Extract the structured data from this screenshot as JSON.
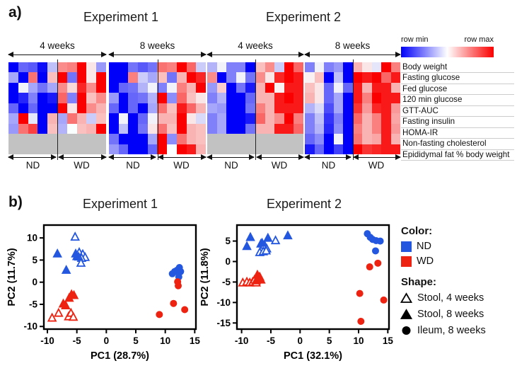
{
  "panel_a": {
    "label": "a)",
    "experiments": [
      "Experiment 1",
      "Experiment 2"
    ],
    "colorbar": {
      "min_label": "row min",
      "max_label": "row max"
    },
    "nd_label": "ND",
    "wd_label": "WD",
    "row_labels": [
      "Body weight",
      "Fasting glucose",
      "Fed glucose",
      "120 min glucose",
      "GTT-AUC",
      "Fasting insulin",
      "HOMA-IR",
      "Non-fasting cholesterol",
      "Epididymal fat % body weight"
    ]
  },
  "panel_b": {
    "label": "b)",
    "titles": [
      "Experiment 1",
      "Experiment 2"
    ],
    "legend": {
      "color_title": "Color:",
      "color_items": [
        {
          "label": "ND",
          "color_key": "nd_blue"
        },
        {
          "label": "WD",
          "color_key": "wd_red"
        }
      ],
      "shape_title": "Shape:",
      "shape_items": [
        {
          "label": "Stool, 4 weeks",
          "shape": "triangle-open"
        },
        {
          "label": "Stool, 8 weeks",
          "shape": "triangle-filled"
        },
        {
          "label": "Ileum, 8 weeks",
          "shape": "circle-filled"
        }
      ]
    }
  },
  "colors": {
    "nd_blue": "#2457E0",
    "wd_red": "#EE2211",
    "heat_min_blue": "#0000FA",
    "heat_max_red": "#FA0000",
    "missing_gray": "#C2C2C2"
  },
  "chart_data": [
    {
      "type": "heatmap",
      "experiment": "Experiment 1",
      "week_label": "4 weeks",
      "column_groups": {
        "ND": 5,
        "WD": 5
      },
      "scale": "row min (-1, blue) to row max (+1, red), null = not measured (gray)",
      "values": [
        [
          -1,
          -0.6,
          -0.65,
          -0.95,
          -0.25,
          0.45,
          0.5,
          1,
          0.1,
          -0.4
        ],
        [
          -0.35,
          -1,
          0.55,
          -1,
          0.25,
          1,
          -0.55,
          1,
          0.1,
          1
        ],
        [
          -1,
          -0.05,
          -0.35,
          -0.55,
          -0.35,
          0.45,
          0.15,
          0.85,
          0.45,
          1
        ],
        [
          -1,
          -0.85,
          -0.5,
          -1,
          -0.9,
          0.6,
          -0.5,
          1,
          0.25,
          0.45
        ],
        [
          -0.6,
          -1,
          -0.6,
          -1,
          -1,
          1,
          0.1,
          1,
          0.45,
          0.3
        ],
        [
          -0.35,
          1,
          -0.1,
          -1,
          0.3,
          -0.35,
          0.55,
          0.3,
          -0.2,
          0.25
        ],
        [
          -0.4,
          0.55,
          0.75,
          -1,
          0.25,
          -0.3,
          0,
          0.25,
          0.3,
          1
        ],
        [
          null,
          null,
          null,
          null,
          null,
          null,
          null,
          null,
          null,
          null
        ],
        [
          null,
          null,
          null,
          null,
          null,
          null,
          null,
          null,
          null,
          null
        ]
      ]
    },
    {
      "type": "heatmap",
      "experiment": "Experiment 1",
      "week_label": "8 weeks",
      "column_groups": {
        "ND": 5,
        "WD": 5
      },
      "values": [
        [
          -1,
          -1,
          -0.55,
          -0.65,
          -0.55,
          0.55,
          0.5,
          1,
          0.6,
          -0.2
        ],
        [
          -1,
          -1,
          0.5,
          -0.2,
          -0.35,
          0.25,
          -0.55,
          0.3,
          1,
          0.85
        ],
        [
          -1,
          -0.6,
          -0.55,
          -0.3,
          -0.05,
          -0.5,
          -0.05,
          0.5,
          0.3,
          1
        ],
        [
          -0.4,
          -1,
          -0.6,
          -0.55,
          -0.3,
          1,
          -0.45,
          0.6,
          0.25,
          0.1
        ],
        [
          -0.6,
          -1,
          -0.6,
          -1,
          -0.35,
          0.55,
          0.25,
          0.9,
          0.6,
          0.3
        ],
        [
          -1,
          -0.05,
          -1,
          -0.6,
          -0.05,
          0.3,
          0.3,
          1,
          0.1,
          -0.15
        ],
        [
          -1,
          -0.25,
          -1,
          -0.55,
          0.1,
          0.55,
          0.25,
          1,
          0.3,
          0.25
        ],
        [
          -0.55,
          -1,
          -1,
          -1,
          -0.35,
          1,
          -0.45,
          0.55,
          0.3,
          0.25
        ],
        [
          -0.4,
          -0.6,
          -1,
          -1,
          -0.6,
          1,
          0,
          1,
          0.9,
          0.3
        ]
      ]
    },
    {
      "type": "heatmap",
      "experiment": "Experiment 2",
      "week_label": "4 weeks",
      "column_groups": {
        "ND": 5,
        "WD": 5
      },
      "values": [
        [
          -0.3,
          -0.05,
          -0.5,
          -0.5,
          -1,
          0.25,
          0.45,
          -0.2,
          1,
          0.6
        ],
        [
          0.45,
          -1,
          -0.5,
          -0.05,
          -0.55,
          0.45,
          0.1,
          0.85,
          1,
          0.9
        ],
        [
          -0.4,
          0.2,
          -1,
          -0.55,
          -0.9,
          0.3,
          1,
          0.05,
          0.9,
          0.9
        ],
        [
          -0.5,
          -0.3,
          -1,
          -1,
          -0.6,
          0.3,
          0.3,
          0.9,
          1,
          0.9
        ],
        [
          -0.35,
          -0.4,
          -1,
          -1,
          -0.55,
          0.5,
          0.3,
          0.9,
          0.9,
          0.9
        ],
        [
          -0.5,
          -0.35,
          -1,
          -1,
          -0.9,
          0.6,
          0.3,
          0.45,
          1,
          0.5
        ],
        [
          -0.5,
          -0.35,
          -1,
          -1,
          -0.55,
          0.3,
          0.3,
          0.9,
          0.9,
          0.6
        ],
        [
          null,
          null,
          null,
          null,
          null,
          null,
          null,
          null,
          null,
          null
        ],
        [
          null,
          null,
          null,
          null,
          null,
          null,
          null,
          null,
          null,
          null
        ]
      ]
    },
    {
      "type": "heatmap",
      "experiment": "Experiment 2",
      "week_label": "8 weeks",
      "column_groups": {
        "ND": 5,
        "WD": 5
      },
      "values": [
        [
          -0.5,
          -0.05,
          -0.5,
          -0.4,
          -1,
          0.3,
          0.1,
          -0.1,
          1,
          0.5
        ],
        [
          0.05,
          0.25,
          -1,
          -0.25,
          -1,
          1,
          0.9,
          1,
          0.6,
          0.9
        ],
        [
          0.25,
          0.1,
          -0.6,
          -0.05,
          -0.6,
          0.9,
          0.3,
          0.9,
          0.9,
          0.3
        ],
        [
          0.3,
          0.1,
          -0.6,
          -0.35,
          -1,
          0.9,
          0.5,
          1,
          0.9,
          0.9
        ],
        [
          -0.3,
          -0.15,
          -0.7,
          -0.35,
          -1,
          0.8,
          0.4,
          0.85,
          0.9,
          0.4
        ],
        [
          -0.5,
          -0.25,
          -0.8,
          -0.5,
          -1,
          0.6,
          0.3,
          0.5,
          0.9,
          0.35
        ],
        [
          -0.5,
          -0.3,
          -0.85,
          -0.45,
          -1,
          0.5,
          0.3,
          0.5,
          0.9,
          0.4
        ],
        [
          -0.6,
          -0.45,
          -1,
          -0.05,
          -1,
          0.55,
          0.3,
          0.35,
          0.9,
          0.3
        ],
        [
          -0.9,
          -0.6,
          -1,
          -0.75,
          -1,
          1,
          0.8,
          0.85,
          0.9,
          0.9
        ]
      ]
    },
    {
      "type": "scatter",
      "title": "Experiment 1",
      "xlabel": "PC1 (28.7%)",
      "ylabel": "PC2 (11.7%)",
      "xticks": [
        -10,
        -5,
        0,
        5,
        10,
        15
      ],
      "yticks": [
        -10,
        -5,
        0,
        5,
        10
      ],
      "xlim": [
        -10.6,
        15.2
      ],
      "ylim": [
        -10.6,
        12.9
      ],
      "series": [
        {
          "name": "ND Stool, 4 weeks",
          "color": "ND",
          "shape": "triangle-open",
          "points": [
            [
              -5.3,
              10.2
            ],
            [
              -4.6,
              6.7
            ],
            [
              -4.0,
              6.3
            ],
            [
              -3.6,
              5.6
            ],
            [
              -4.2,
              5.4
            ],
            [
              -4.7,
              5.7
            ],
            [
              -4.3,
              4.3
            ]
          ]
        },
        {
          "name": "ND Stool, 8 weeks",
          "color": "ND",
          "shape": "triangle-filled",
          "points": [
            [
              -8.3,
              6.4
            ],
            [
              -6.8,
              2.7
            ],
            [
              -5.2,
              6.4
            ],
            [
              -5.0,
              5.8
            ]
          ]
        },
        {
          "name": "ND Ileum, 8 weeks",
          "color": "ND",
          "shape": "circle-filled",
          "points": [
            [
              11.2,
              1.9
            ],
            [
              11.6,
              2.4
            ],
            [
              12.0,
              2.7
            ],
            [
              12.4,
              3.3
            ],
            [
              12.6,
              2.4
            ],
            [
              12.3,
              1.2
            ]
          ]
        },
        {
          "name": "WD Stool, 4 weeks",
          "color": "WD",
          "shape": "triangle-open",
          "points": [
            [
              -9.2,
              -8.1
            ],
            [
              -8.1,
              -7.0
            ],
            [
              -6.4,
              -7.8
            ],
            [
              -6.0,
              -7.0
            ],
            [
              -5.6,
              -7.9
            ]
          ]
        },
        {
          "name": "WD Stool, 8 weeks",
          "color": "WD",
          "shape": "triangle-filled",
          "points": [
            [
              -7.3,
              -4.9
            ],
            [
              -6.9,
              -5.3
            ],
            [
              -6.3,
              -3.6
            ],
            [
              -5.9,
              -2.8
            ],
            [
              -5.5,
              -3.0
            ]
          ]
        },
        {
          "name": "WD Ileum, 8 weeks",
          "color": "WD",
          "shape": "circle-filled",
          "points": [
            [
              12.1,
              0.1
            ],
            [
              12.2,
              -0.8
            ],
            [
              11.4,
              -4.8
            ],
            [
              13.3,
              -6.2
            ],
            [
              9.0,
              -7.3
            ]
          ]
        }
      ]
    },
    {
      "type": "scatter",
      "title": "Experiment 2",
      "xlabel": "PC1 (32.1%)",
      "ylabel": "PC2 (11.8%)",
      "xticks": [
        -10,
        -5,
        0,
        5,
        10,
        15
      ],
      "yticks": [
        -15,
        -10,
        -5,
        0,
        5
      ],
      "xlim": [
        -10.8,
        15.2
      ],
      "ylim": [
        -16.5,
        8.9
      ],
      "series": [
        {
          "name": "ND Stool, 4 weeks",
          "color": "ND",
          "shape": "triangle-open",
          "points": [
            [
              -6.7,
              4.3
            ],
            [
              -6.1,
              4.0
            ],
            [
              -5.7,
              3.1
            ],
            [
              -6.9,
              2.2
            ],
            [
              -6.3,
              2.4
            ],
            [
              -5.8,
              2.6
            ],
            [
              -4.2,
              5.1
            ]
          ]
        },
        {
          "name": "ND Stool, 8 weeks",
          "color": "ND",
          "shape": "triangle-filled",
          "points": [
            [
              -8.5,
              5.9
            ],
            [
              -9.1,
              3.7
            ],
            [
              -5.5,
              5.7
            ],
            [
              -2.1,
              6.3
            ],
            [
              -6.5,
              4.5
            ]
          ]
        },
        {
          "name": "ND Ileum, 8 weeks",
          "color": "ND",
          "shape": "circle-filled",
          "points": [
            [
              11.5,
              6.8
            ],
            [
              12.0,
              5.9
            ],
            [
              12.4,
              5.4
            ],
            [
              13.0,
              5.1
            ],
            [
              13.7,
              5.0
            ],
            [
              12.9,
              2.6
            ]
          ]
        },
        {
          "name": "WD Stool, 4 weeks",
          "color": "WD",
          "shape": "triangle-open",
          "points": [
            [
              -9.8,
              -5.2
            ],
            [
              -9.1,
              -5.0
            ],
            [
              -8.6,
              -5.2
            ],
            [
              -8.1,
              -5.0
            ],
            [
              -7.8,
              -4.5
            ],
            [
              -7.5,
              -5.2
            ]
          ]
        },
        {
          "name": "WD Stool, 8 weeks",
          "color": "WD",
          "shape": "triangle-filled",
          "points": [
            [
              -7.3,
              -3.3
            ],
            [
              -7.0,
              -4.0
            ],
            [
              -6.7,
              -4.5
            ],
            [
              -7.5,
              -4.7
            ],
            [
              -6.9,
              -3.8
            ]
          ]
        },
        {
          "name": "WD Ileum, 8 weeks",
          "color": "WD",
          "shape": "circle-filled",
          "points": [
            [
              11.9,
              -1.3
            ],
            [
              13.3,
              -0.4
            ],
            [
              10.2,
              -7.8
            ],
            [
              14.3,
              -9.4
            ],
            [
              10.4,
              -14.6
            ]
          ]
        }
      ]
    }
  ]
}
